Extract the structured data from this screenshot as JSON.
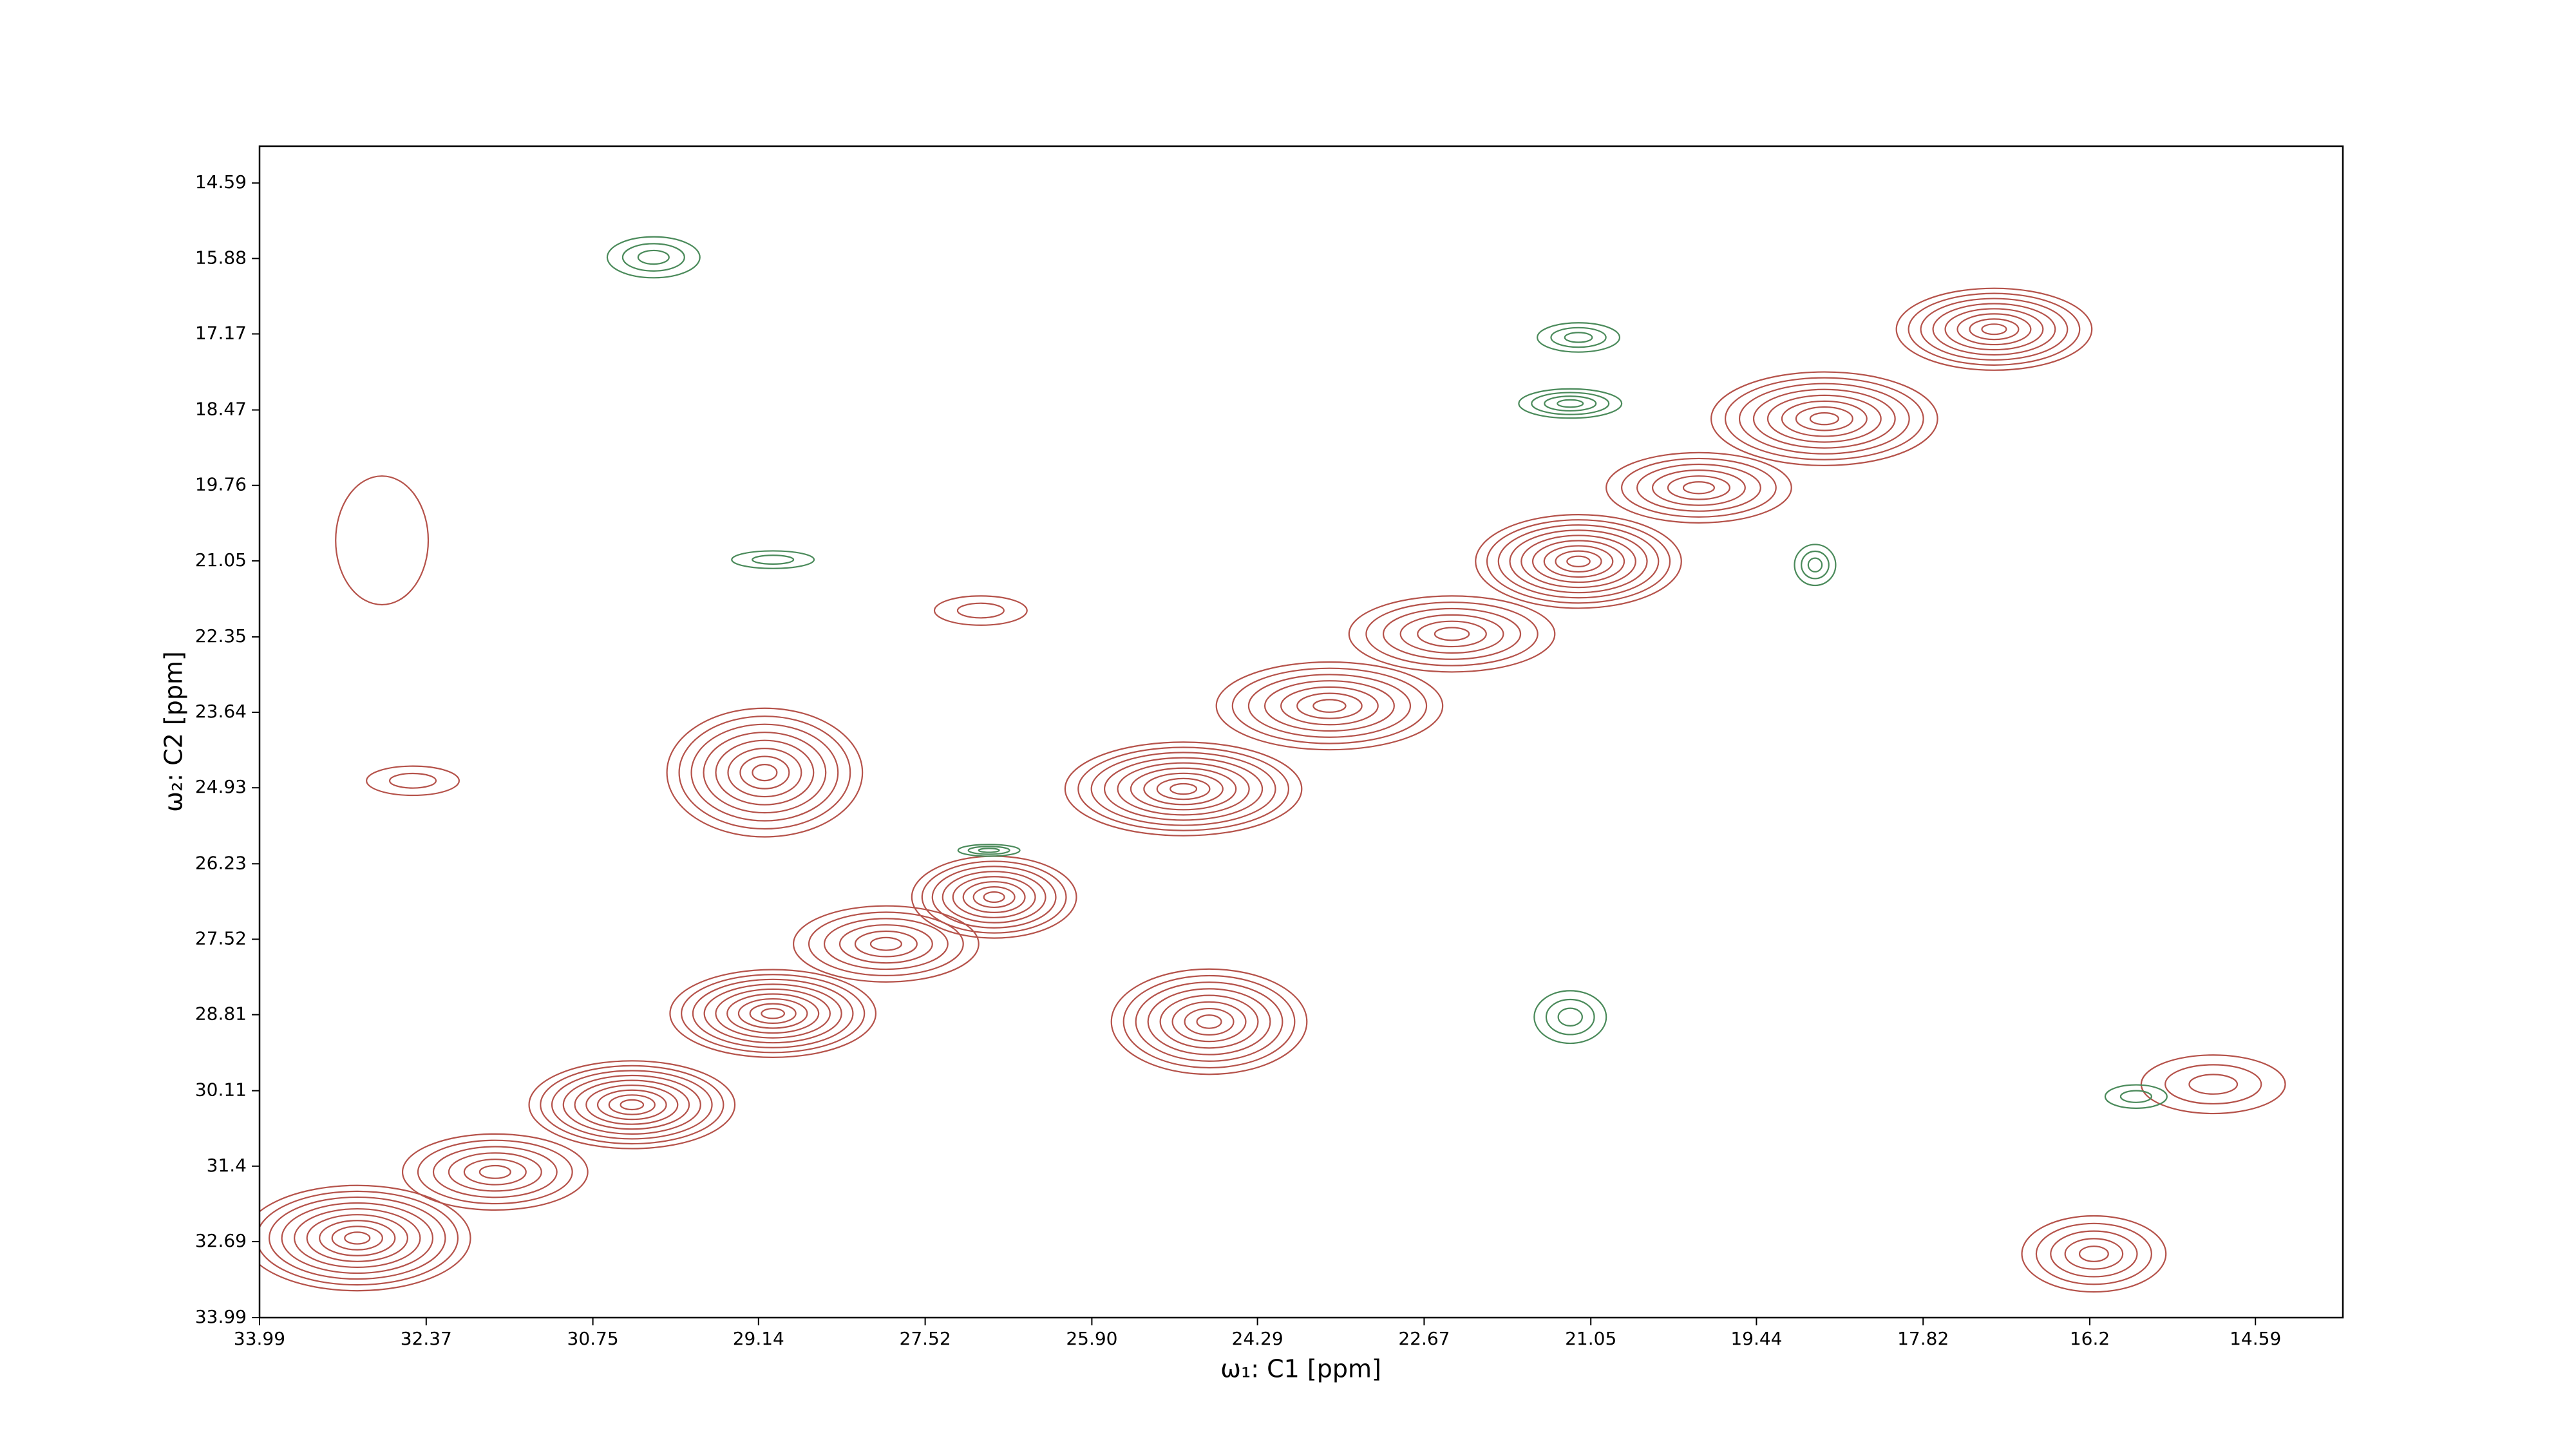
{
  "chart_data": {
    "type": "contour",
    "x_label": "ω₁: C1 [ppm]",
    "y_label": "ω₂: C2 [ppm]",
    "xlim": [
      33.99,
      13.74
    ],
    "ylim": [
      33.99,
      13.96
    ],
    "xticks": [
      33.99,
      32.37,
      30.75,
      29.14,
      27.52,
      {
        "value": 25.9,
        "label": "25.90"
      },
      24.29,
      22.67,
      21.05,
      19.44,
      17.82,
      16.2,
      14.59
    ],
    "yticks": [
      14.59,
      15.88,
      17.17,
      18.47,
      19.76,
      21.05,
      22.35,
      23.64,
      24.93,
      26.23,
      27.52,
      28.81,
      30.11,
      31.4,
      32.69,
      33.99
    ],
    "positive": {
      "color": "#b5524a",
      "x": [
        33.04,
        31.7,
        30.37,
        29.0,
        29.08,
        27.9,
        26.85,
        25.01,
        24.76,
        23.59,
        22.4,
        21.17,
        20.0,
        18.78,
        17.13,
        16.16,
        32.8,
        32.5,
        26.98,
        15.0
      ],
      "y": [
        32.63,
        31.5,
        30.35,
        28.79,
        24.67,
        27.6,
        26.8,
        24.95,
        28.93,
        23.53,
        22.3,
        21.06,
        19.8,
        18.62,
        17.09,
        32.9,
        20.7,
        24.81,
        21.9,
        30.0
      ],
      "width": [
        2.2,
        1.8,
        2.0,
        2.0,
        1.9,
        1.8,
        1.6,
        2.3,
        1.9,
        2.2,
        2.0,
        2.0,
        1.8,
        2.2,
        1.9,
        1.4,
        0.9,
        0.9,
        0.9,
        1.4
      ],
      "height": [
        1.8,
        1.3,
        1.5,
        1.5,
        2.2,
        1.3,
        1.4,
        1.6,
        1.8,
        1.5,
        1.3,
        1.6,
        1.2,
        1.6,
        1.4,
        1.3,
        2.2,
        0.5,
        0.5,
        1.0
      ],
      "levels": [
        9,
        6,
        9,
        9,
        8,
        6,
        8,
        9,
        8,
        7,
        6,
        9,
        6,
        8,
        8,
        5,
        1,
        2,
        2,
        3
      ]
    },
    "negative": {
      "color": "#4a8a5a",
      "x": [
        30.16,
        21.17,
        21.25,
        21.25,
        18.87,
        15.75,
        29.0,
        26.9
      ],
      "y": [
        15.86,
        17.23,
        18.36,
        28.85,
        21.12,
        30.21,
        21.03,
        26.0
      ],
      "width": [
        0.9,
        0.8,
        1.0,
        0.7,
        0.4,
        0.6,
        0.8,
        0.6
      ],
      "height": [
        0.7,
        0.5,
        0.5,
        0.9,
        0.7,
        0.4,
        0.3,
        0.2
      ],
      "levels": [
        3,
        3,
        4,
        3,
        3,
        2,
        2,
        3
      ]
    }
  }
}
